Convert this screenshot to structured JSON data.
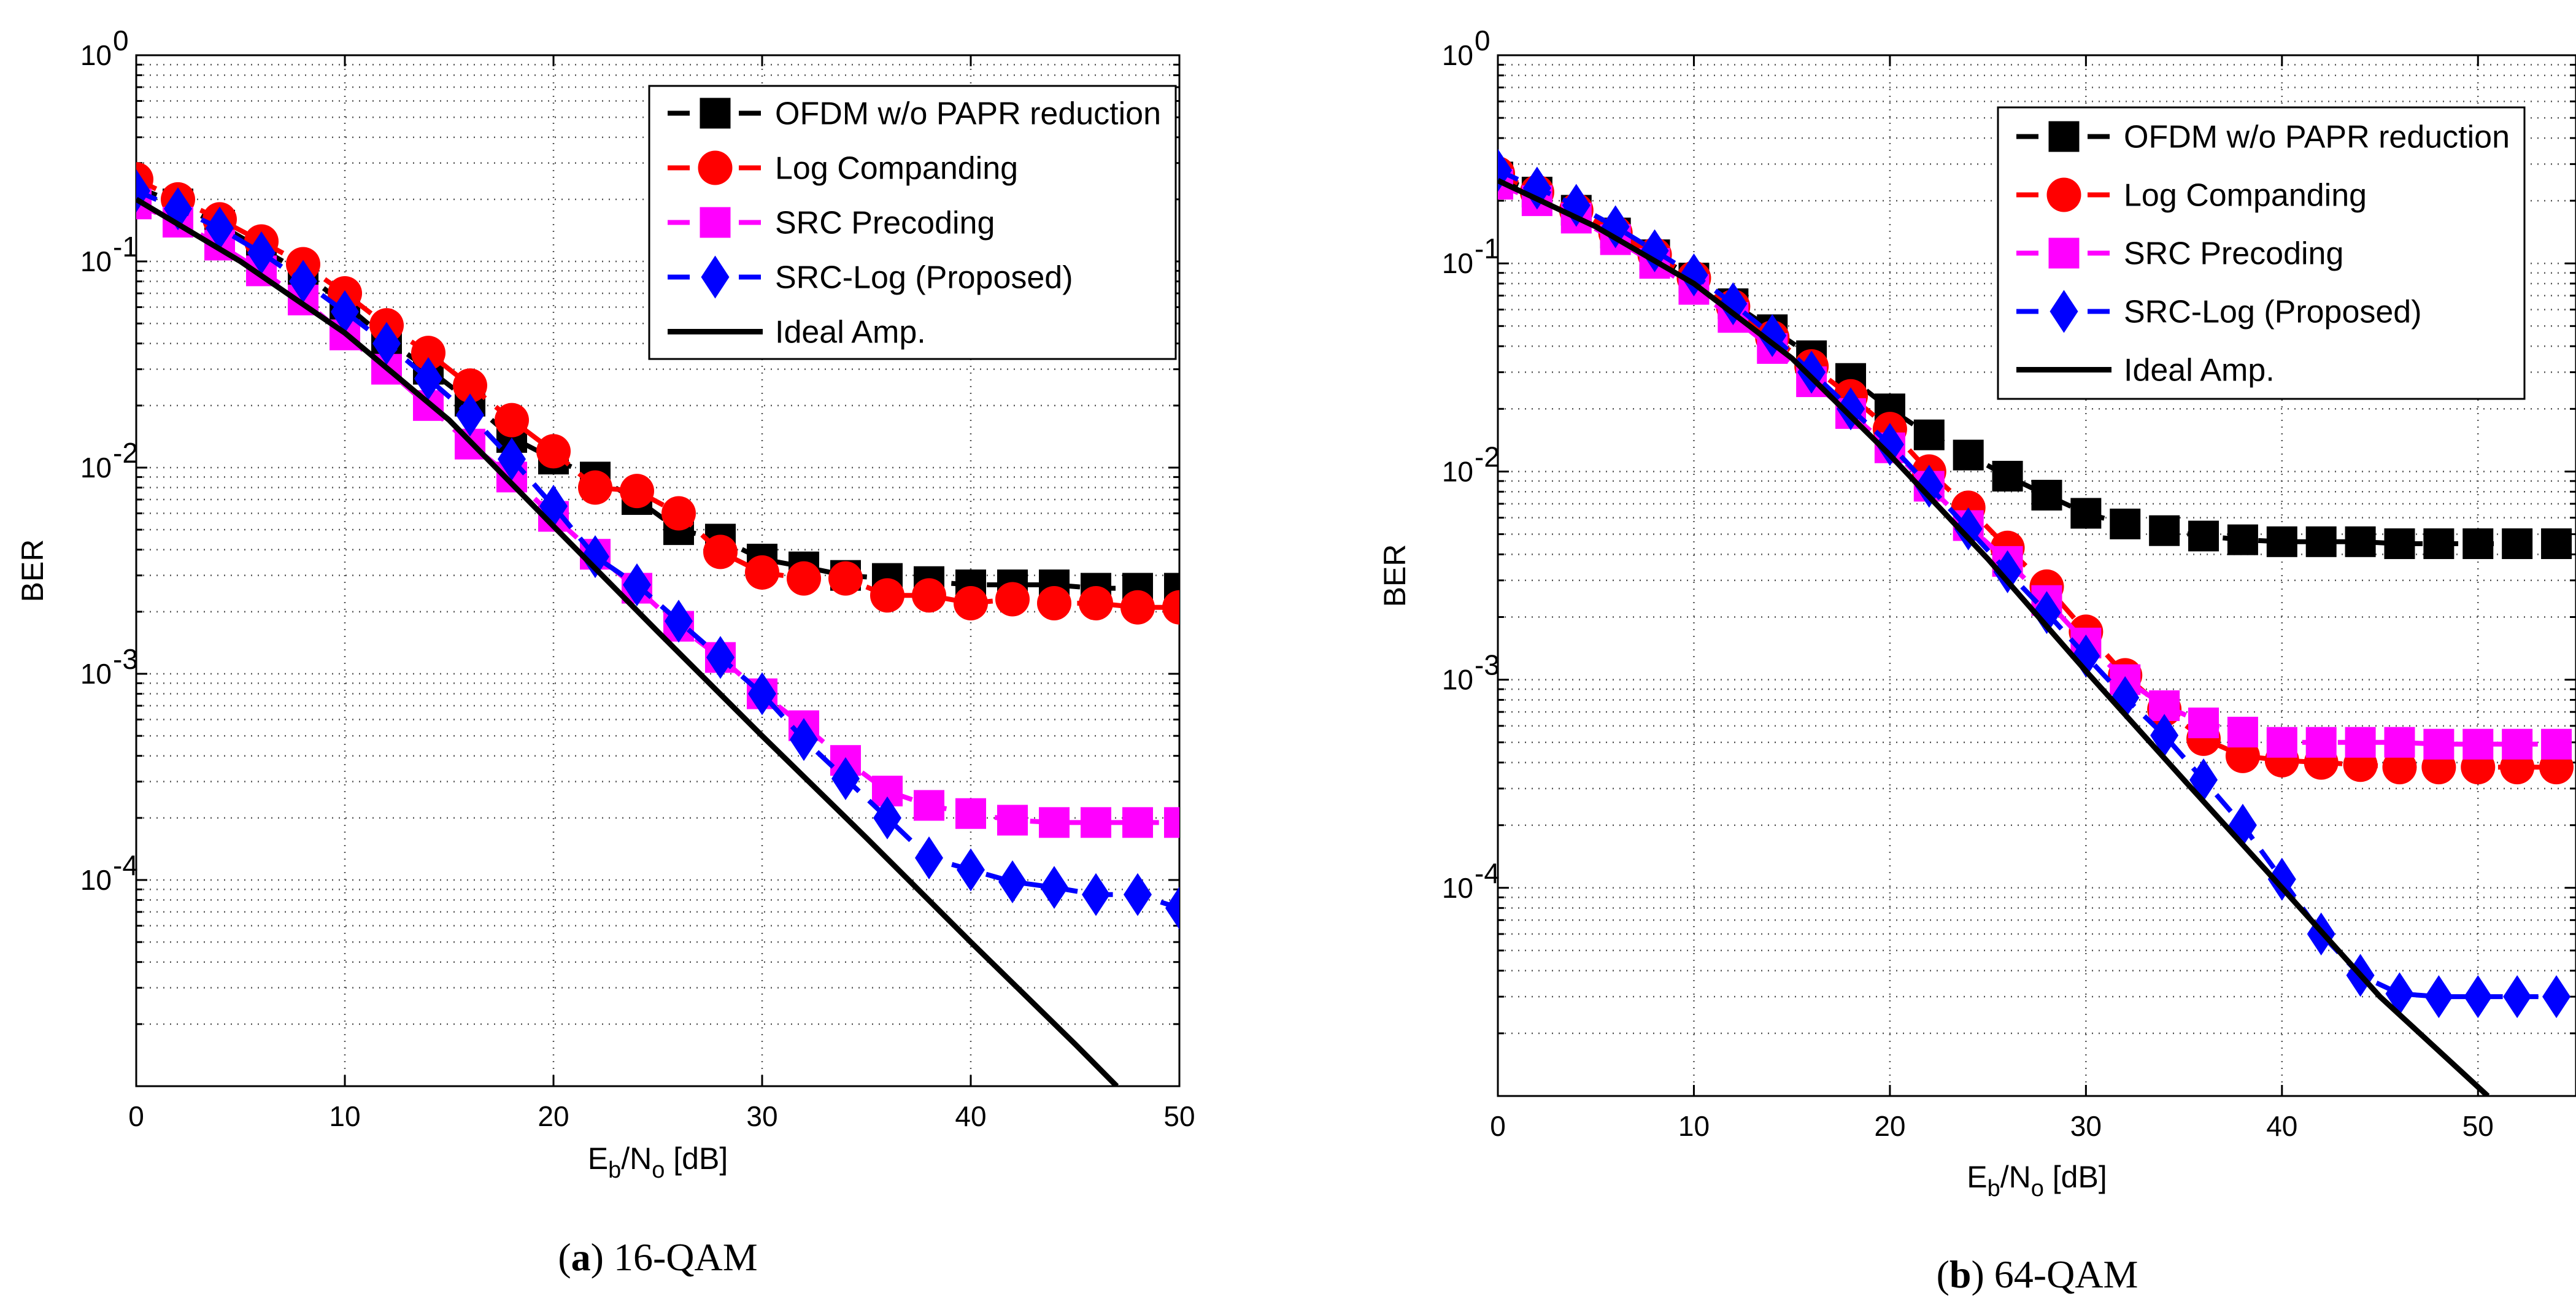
{
  "chart_data": [
    {
      "type": "line",
      "caption_letter": "a",
      "caption_text": "16-QAM",
      "xlabel_main": "E",
      "xlabel_sub1": "b",
      "xlabel_mid": "/N",
      "xlabel_sub2": "o",
      "xlabel_unit": " [dB]",
      "ylabel": "BER",
      "xlim": [
        0,
        50
      ],
      "ylim": [
        1e-05,
        1
      ],
      "y_scale": "log",
      "grid": true,
      "legend_position": "top-right",
      "x_ticks": [
        0,
        10,
        20,
        30,
        40,
        50
      ],
      "x_tick_labels": [
        "0",
        "10",
        "20",
        "30",
        "40",
        "50"
      ],
      "y_ticks": [
        1,
        0.1,
        0.01,
        0.001,
        0.0001
      ],
      "y_tick_base": [
        "10",
        "10",
        "10",
        "10",
        "10"
      ],
      "y_tick_exp": [
        "0",
        "-1",
        "-2",
        "-3",
        "-4"
      ],
      "series": [
        {
          "name": "OFDM w/o PAPR reduction",
          "color": "#000000",
          "marker": "square",
          "x": [
            0,
            2,
            4,
            6,
            8,
            10,
            12,
            14,
            16,
            18,
            20,
            22,
            24,
            26,
            28,
            30,
            32,
            34,
            36,
            38,
            40,
            42,
            44,
            46,
            48,
            50
          ],
          "y": [
            0.23,
            0.19,
            0.15,
            0.115,
            0.088,
            0.062,
            0.042,
            0.03,
            0.021,
            0.014,
            0.011,
            0.009,
            0.007,
            0.005,
            0.0045,
            0.0036,
            0.0033,
            0.003,
            0.0029,
            0.0028,
            0.0027,
            0.0027,
            0.0027,
            0.0026,
            0.0026,
            0.0026
          ]
        },
        {
          "name": "Log Companding",
          "color": "#ff0000",
          "marker": "circle",
          "x": [
            0,
            2,
            4,
            6,
            8,
            10,
            12,
            14,
            16,
            18,
            20,
            22,
            24,
            26,
            28,
            30,
            32,
            34,
            36,
            38,
            40,
            42,
            44,
            46,
            48,
            50
          ],
          "y": [
            0.25,
            0.2,
            0.16,
            0.125,
            0.097,
            0.07,
            0.049,
            0.036,
            0.025,
            0.017,
            0.012,
            0.008,
            0.0077,
            0.006,
            0.0039,
            0.0031,
            0.0029,
            0.0029,
            0.0024,
            0.0024,
            0.0022,
            0.0023,
            0.0022,
            0.0022,
            0.0021,
            0.0021
          ]
        },
        {
          "name": "SRC Precoding",
          "color": "#ff00ff",
          "marker": "square",
          "x": [
            0,
            2,
            4,
            6,
            8,
            10,
            12,
            14,
            16,
            18,
            20,
            22,
            24,
            26,
            28,
            30,
            32,
            34,
            36,
            38,
            40,
            42,
            44,
            46,
            48,
            50
          ],
          "y": [
            0.19,
            0.155,
            0.12,
            0.09,
            0.065,
            0.044,
            0.03,
            0.02,
            0.013,
            0.009,
            0.0058,
            0.0038,
            0.0026,
            0.0017,
            0.0012,
            0.0008,
            0.00056,
            0.00038,
            0.00027,
            0.00023,
            0.00021,
            0.000195,
            0.00019,
            0.00019,
            0.00019,
            0.00019
          ]
        },
        {
          "name": "SRC-Log (Proposed)",
          "color": "#0000ff",
          "marker": "diamond",
          "x": [
            0,
            2,
            4,
            6,
            8,
            10,
            12,
            14,
            16,
            18,
            20,
            22,
            24,
            26,
            28,
            30,
            32,
            34,
            36,
            38,
            40,
            42,
            44,
            46,
            48,
            50
          ],
          "y": [
            0.22,
            0.18,
            0.145,
            0.11,
            0.08,
            0.057,
            0.04,
            0.027,
            0.018,
            0.011,
            0.0065,
            0.0037,
            0.0027,
            0.0018,
            0.0012,
            0.0008,
            0.00048,
            0.00031,
            0.0002,
            0.000128,
            0.000112,
            9.8e-05,
            9.2e-05,
            8.5e-05,
            8.5e-05,
            7.3e-05
          ]
        },
        {
          "name": "Ideal Amp.",
          "color": "#000000",
          "marker": "none",
          "x": [
            0,
            5,
            10,
            15,
            20,
            25,
            30,
            35,
            40,
            45,
            47
          ],
          "y": [
            0.2,
            0.1,
            0.045,
            0.017,
            0.0052,
            0.0016,
            0.0005,
            0.00016,
            5e-05,
            1.6e-05,
            1e-05
          ]
        }
      ]
    },
    {
      "type": "line",
      "caption_letter": "b",
      "caption_text": "64-QAM",
      "xlabel_main": "E",
      "xlabel_sub1": "b",
      "xlabel_mid": "/N",
      "xlabel_sub2": "o",
      "xlabel_unit": " [dB]",
      "ylabel": "BER",
      "xlim": [
        0,
        55
      ],
      "ylim": [
        1e-05,
        1
      ],
      "y_scale": "log",
      "grid": true,
      "legend_position": "top-right",
      "x_ticks": [
        0,
        10,
        20,
        30,
        40,
        50
      ],
      "x_tick_labels": [
        "0",
        "10",
        "20",
        "30",
        "40",
        "50"
      ],
      "y_ticks": [
        1,
        0.1,
        0.01,
        0.001,
        0.0001
      ],
      "y_tick_base": [
        "10",
        "10",
        "10",
        "10",
        "10"
      ],
      "y_tick_exp": [
        "0",
        "-1",
        "-2",
        "-3",
        "-4"
      ],
      "series": [
        {
          "name": "OFDM w/o PAPR reduction",
          "color": "#000000",
          "marker": "square",
          "x": [
            0,
            2,
            4,
            6,
            8,
            10,
            12,
            14,
            16,
            18,
            20,
            22,
            24,
            26,
            28,
            30,
            32,
            34,
            36,
            38,
            40,
            42,
            44,
            46,
            48,
            50,
            52,
            54
          ],
          "y": [
            0.26,
            0.22,
            0.18,
            0.14,
            0.11,
            0.085,
            0.064,
            0.048,
            0.036,
            0.028,
            0.02,
            0.015,
            0.012,
            0.0095,
            0.0077,
            0.0063,
            0.0056,
            0.0052,
            0.0049,
            0.0047,
            0.0046,
            0.0046,
            0.0046,
            0.0045,
            0.0045,
            0.0045,
            0.0045,
            0.0045
          ]
        },
        {
          "name": "Log Companding",
          "color": "#ff0000",
          "marker": "circle",
          "x": [
            0,
            2,
            4,
            6,
            8,
            10,
            12,
            14,
            16,
            18,
            20,
            22,
            24,
            26,
            28,
            30,
            32,
            34,
            36,
            38,
            40,
            42,
            44,
            46,
            48,
            50,
            52,
            54
          ],
          "y": [
            0.27,
            0.22,
            0.18,
            0.14,
            0.11,
            0.085,
            0.062,
            0.044,
            0.032,
            0.023,
            0.016,
            0.01,
            0.0067,
            0.0043,
            0.0028,
            0.0017,
            0.00105,
            0.00072,
            0.00052,
            0.00043,
            0.00041,
            0.0004,
            0.00039,
            0.00038,
            0.00038,
            0.00038,
            0.00038,
            0.00038
          ]
        },
        {
          "name": "SRC Precoding",
          "color": "#ff00ff",
          "marker": "square",
          "x": [
            0,
            2,
            4,
            6,
            8,
            10,
            12,
            14,
            16,
            18,
            20,
            22,
            24,
            26,
            28,
            30,
            32,
            34,
            36,
            38,
            40,
            42,
            44,
            46,
            48,
            50,
            52,
            54
          ],
          "y": [
            0.24,
            0.2,
            0.165,
            0.13,
            0.1,
            0.075,
            0.055,
            0.039,
            0.027,
            0.019,
            0.013,
            0.0085,
            0.0055,
            0.0037,
            0.0024,
            0.0015,
            0.001,
            0.00075,
            0.00062,
            0.00056,
            0.0005,
            0.0005,
            0.0005,
            0.0005,
            0.00049,
            0.00049,
            0.00049,
            0.00049
          ]
        },
        {
          "name": "SRC-Log (Proposed)",
          "color": "#0000ff",
          "marker": "diamond",
          "x": [
            0,
            2,
            4,
            6,
            8,
            10,
            12,
            14,
            16,
            18,
            20,
            22,
            24,
            26,
            28,
            30,
            32,
            34,
            36,
            38,
            40,
            42,
            44,
            46,
            48,
            50,
            52,
            54
          ],
          "y": [
            0.28,
            0.23,
            0.19,
            0.15,
            0.115,
            0.088,
            0.064,
            0.045,
            0.03,
            0.02,
            0.0135,
            0.0085,
            0.0053,
            0.0033,
            0.0021,
            0.0013,
            0.00082,
            0.00054,
            0.00033,
            0.0002,
            0.00011,
            6e-05,
            3.8e-05,
            3.1e-05,
            3e-05,
            3e-05,
            3e-05,
            3e-05
          ]
        },
        {
          "name": "Ideal Amp.",
          "color": "#000000",
          "marker": "none",
          "x": [
            0,
            5,
            10,
            15,
            20,
            25,
            30,
            35,
            40,
            45,
            50.5
          ],
          "y": [
            0.25,
            0.15,
            0.08,
            0.035,
            0.012,
            0.0038,
            0.0011,
            0.00033,
            0.0001,
            3e-05,
            1e-05
          ]
        }
      ]
    }
  ]
}
